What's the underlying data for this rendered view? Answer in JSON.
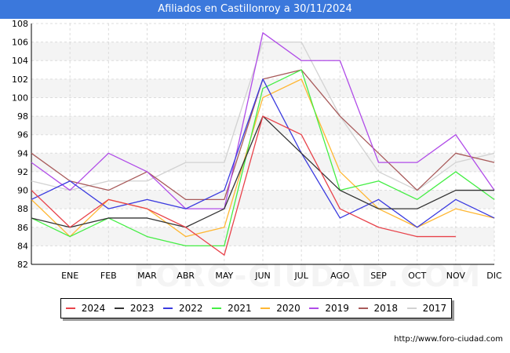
{
  "header": {
    "title": "Afiliados en Castillonroy a 30/11/2024"
  },
  "watermark": "FORO-CIUDAD.COM",
  "source": "http://www.foro-ciudad.com",
  "chart_data": {
    "type": "line",
    "title": "Afiliados en Castillonroy a 30/11/2024",
    "xlabel": "",
    "ylabel": "",
    "categories": [
      "",
      "ENE",
      "FEB",
      "MAR",
      "ABR",
      "MAY",
      "JUN",
      "JUL",
      "AGO",
      "SEP",
      "OCT",
      "NOV",
      "DIC"
    ],
    "ylim": [
      82,
      108
    ],
    "yticks": [
      82,
      84,
      86,
      88,
      90,
      92,
      94,
      96,
      98,
      100,
      102,
      104,
      106,
      108
    ],
    "grid": true,
    "legend_position": "bottom",
    "series": [
      {
        "name": "2024",
        "color": "#e8434b",
        "values": [
          90,
          86,
          89,
          88,
          86,
          83,
          98,
          96,
          88,
          86,
          85,
          85,
          null
        ]
      },
      {
        "name": "2023",
        "color": "#333333",
        "values": [
          87,
          86,
          87,
          87,
          86,
          88,
          98,
          94,
          90,
          88,
          88,
          90,
          90
        ]
      },
      {
        "name": "2022",
        "color": "#3a3adf",
        "values": [
          89,
          91,
          88,
          89,
          88,
          90,
          102,
          94,
          87,
          89,
          86,
          89,
          87
        ]
      },
      {
        "name": "2021",
        "color": "#44ee44",
        "values": [
          87,
          85,
          87,
          85,
          84,
          84,
          101,
          103,
          90,
          91,
          89,
          92,
          89
        ]
      },
      {
        "name": "2020",
        "color": "#ffb733",
        "values": [
          89,
          85,
          89,
          88,
          85,
          86,
          100,
          102,
          92,
          88,
          86,
          88,
          87
        ]
      },
      {
        "name": "2019",
        "color": "#b04ce8",
        "values": [
          93,
          90,
          94,
          92,
          88,
          88,
          107,
          104,
          104,
          93,
          93,
          96,
          90
        ]
      },
      {
        "name": "2018",
        "color": "#a85a5a",
        "values": [
          94,
          91,
          90,
          92,
          89,
          89,
          102,
          103,
          98,
          94,
          90,
          94,
          93
        ]
      },
      {
        "name": "2017",
        "color": "#d2d2d2",
        "values": [
          91,
          90,
          91,
          91,
          93,
          93,
          106,
          106,
          98,
          92,
          90,
          93,
          94
        ]
      }
    ]
  }
}
